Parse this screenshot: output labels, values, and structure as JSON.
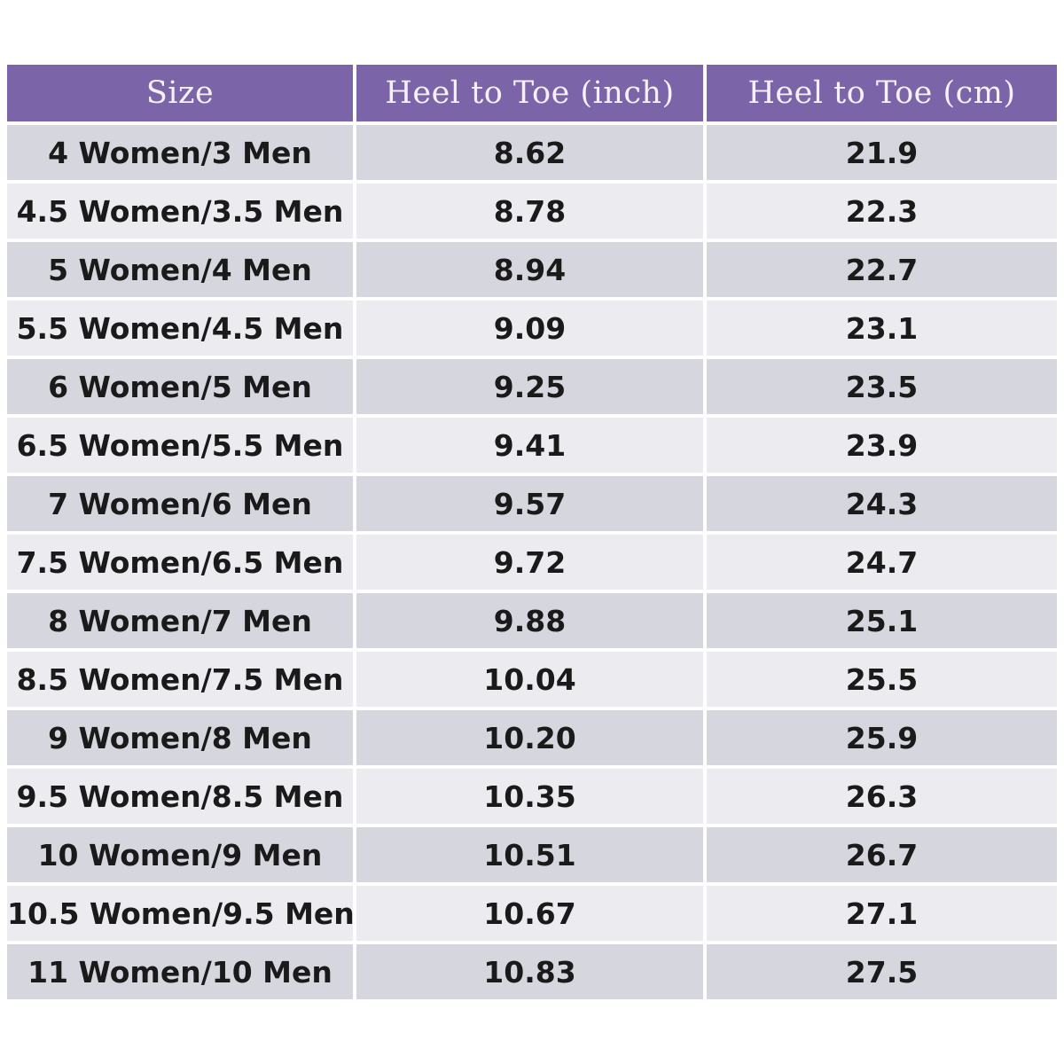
{
  "colors": {
    "header_background": "#7b64a8",
    "header_text": "#f4f1fa",
    "row_dark": "#d6d6df",
    "row_light": "#ebebf0",
    "cell_text": "#1a1a1a"
  },
  "table": {
    "headers": [
      "Size",
      "Heel to Toe (inch)",
      "Heel to Toe (cm)"
    ],
    "rows": [
      [
        "4 Women/3 Men",
        "8.62",
        "21.9"
      ],
      [
        "4.5 Women/3.5 Men",
        "8.78",
        "22.3"
      ],
      [
        "5 Women/4 Men",
        "8.94",
        "22.7"
      ],
      [
        "5.5 Women/4.5 Men",
        "9.09",
        "23.1"
      ],
      [
        "6 Women/5 Men",
        "9.25",
        "23.5"
      ],
      [
        "6.5 Women/5.5 Men",
        "9.41",
        "23.9"
      ],
      [
        "7 Women/6 Men",
        "9.57",
        "24.3"
      ],
      [
        "7.5 Women/6.5 Men",
        "9.72",
        "24.7"
      ],
      [
        "8 Women/7 Men",
        "9.88",
        "25.1"
      ],
      [
        "8.5 Women/7.5 Men",
        "10.04",
        "25.5"
      ],
      [
        "9 Women/8 Men",
        "10.20",
        "25.9"
      ],
      [
        "9.5 Women/8.5 Men",
        "10.35",
        "26.3"
      ],
      [
        "10 Women/9 Men",
        "10.51",
        "26.7"
      ],
      [
        "10.5 Women/9.5 Men",
        "10.67",
        "27.1"
      ],
      [
        "11 Women/10 Men",
        "10.83",
        "27.5"
      ]
    ]
  }
}
